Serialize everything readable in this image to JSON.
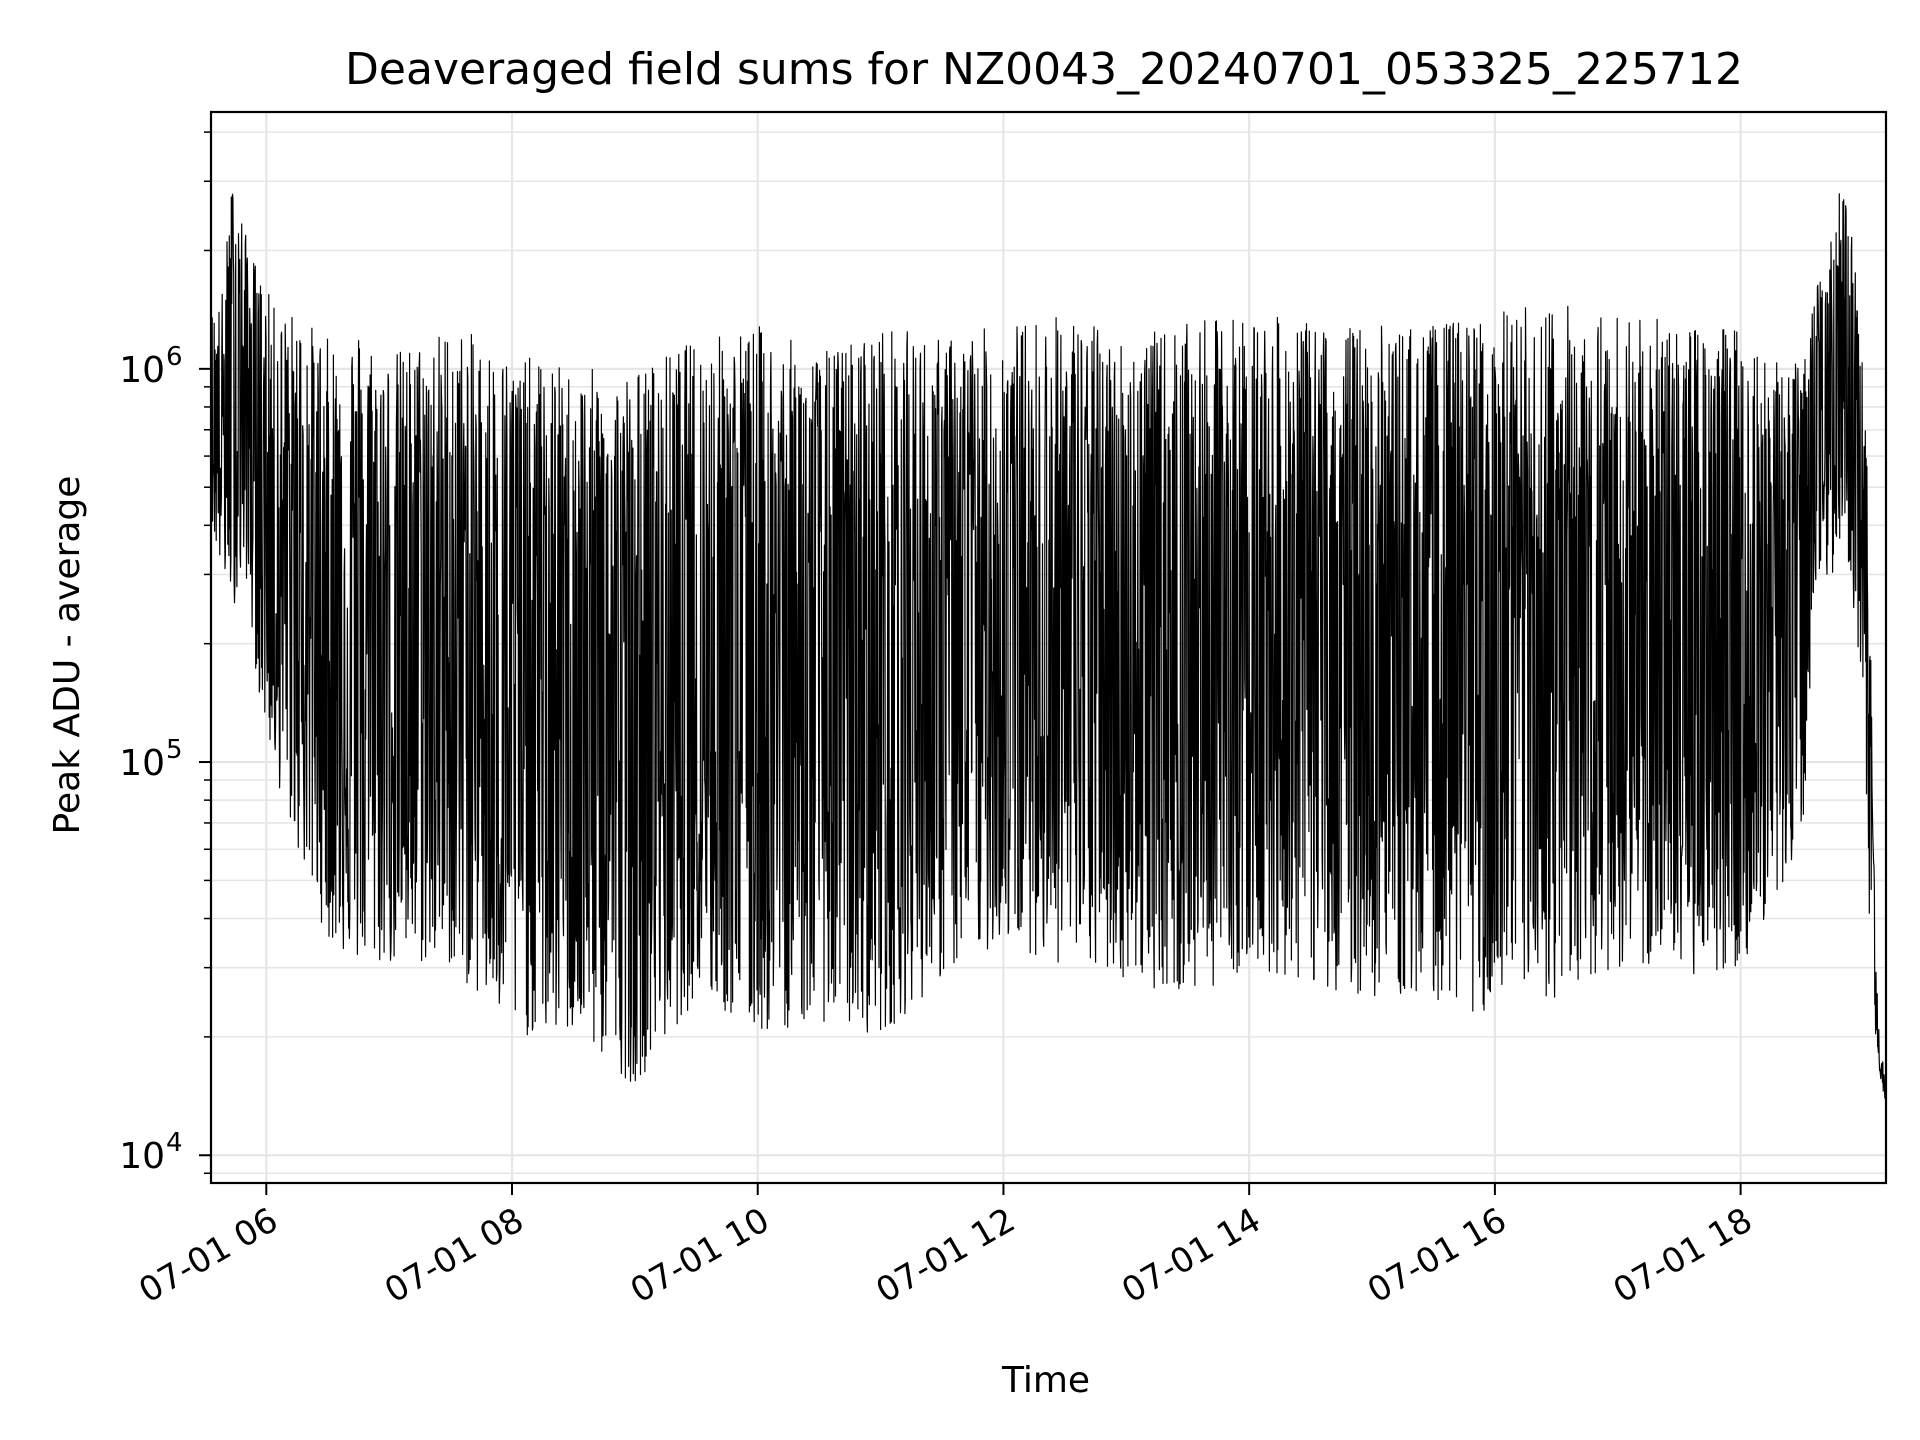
{
  "chart_data": {
    "type": "line",
    "title": "Deaveraged field sums for NZ0043_20240701_053325_225712",
    "xlabel": "Time",
    "ylabel": "Peak ADU - average",
    "y_scale": "log",
    "xlim": [
      "2024-07-01 05:33",
      "2024-07-01 19:11"
    ],
    "ylim": [
      8500,
      4500000
    ],
    "x_ticks": [
      {
        "label": "07-01 06",
        "value": "2024-07-01 06:00"
      },
      {
        "label": "07-01 08",
        "value": "2024-07-01 08:00"
      },
      {
        "label": "07-01 10",
        "value": "2024-07-01 10:00"
      },
      {
        "label": "07-01 12",
        "value": "2024-07-01 12:00"
      },
      {
        "label": "07-01 14",
        "value": "2024-07-01 14:00"
      },
      {
        "label": "07-01 16",
        "value": "2024-07-01 16:00"
      },
      {
        "label": "07-01 18",
        "value": "2024-07-01 18:00"
      }
    ],
    "y_ticks": [
      {
        "base": "10",
        "exp": "4",
        "value": 10000
      },
      {
        "base": "10",
        "exp": "5",
        "value": 100000
      },
      {
        "base": "10",
        "exp": "6",
        "value": 1000000
      }
    ],
    "grid": true,
    "line_color": "#000000",
    "series": [
      {
        "x": [
          "2024-07-01 05:33",
          "2024-07-01 05:38",
          "2024-07-01 05:44",
          "2024-07-01 05:50",
          "2024-07-01 05:56",
          "2024-07-01 06:05",
          "2024-07-01 06:15",
          "2024-07-01 06:30",
          "2024-07-01 06:45",
          "2024-07-01 07:00",
          "2024-07-01 07:30",
          "2024-07-01 08:00",
          "2024-07-01 08:30",
          "2024-07-01 09:00",
          "2024-07-01 09:30",
          "2024-07-01 10:00",
          "2024-07-01 10:30",
          "2024-07-01 11:00",
          "2024-07-01 11:30",
          "2024-07-01 12:00",
          "2024-07-01 12:30",
          "2024-07-01 13:00",
          "2024-07-01 13:30",
          "2024-07-01 14:00",
          "2024-07-01 14:30",
          "2024-07-01 15:00",
          "2024-07-01 15:30",
          "2024-07-01 16:00",
          "2024-07-01 16:30",
          "2024-07-01 17:00",
          "2024-07-01 17:30",
          "2024-07-01 18:00",
          "2024-07-01 18:30",
          "2024-07-01 18:37",
          "2024-07-01 18:45",
          "2024-07-01 18:50",
          "2024-07-01 18:55",
          "2024-07-01 19:00",
          "2024-07-01 19:03",
          "2024-07-01 19:06",
          "2024-07-01 19:08",
          "2024-07-01 19:11"
        ],
        "peak_envelope": [
          1400000,
          1500000,
          3300000,
          2200000,
          1800000,
          1400000,
          1400000,
          1200000,
          1300000,
          1100000,
          1300000,
          1100000,
          1000000,
          1000000,
          1200000,
          1300000,
          1100000,
          1300000,
          1200000,
          1300000,
          1400000,
          1200000,
          1300000,
          1400000,
          1300000,
          1300000,
          1300000,
          1400000,
          1500000,
          1400000,
          1300000,
          1300000,
          1000000,
          1600000,
          2200000,
          3500000,
          2000000,
          1300000,
          300000,
          30000,
          20000,
          15000
        ],
        "trough_envelope": [
          400000,
          300000,
          250000,
          300000,
          150000,
          90000,
          60000,
          35000,
          30000,
          30000,
          30000,
          20000,
          20000,
          15000,
          25000,
          20000,
          22000,
          20000,
          28000,
          35000,
          30000,
          28000,
          25000,
          30000,
          27000,
          25000,
          25000,
          22000,
          25000,
          30000,
          28000,
          30000,
          60000,
          300000,
          300000,
          400000,
          250000,
          150000,
          30000,
          20000,
          16000,
          13000
        ]
      }
    ]
  }
}
